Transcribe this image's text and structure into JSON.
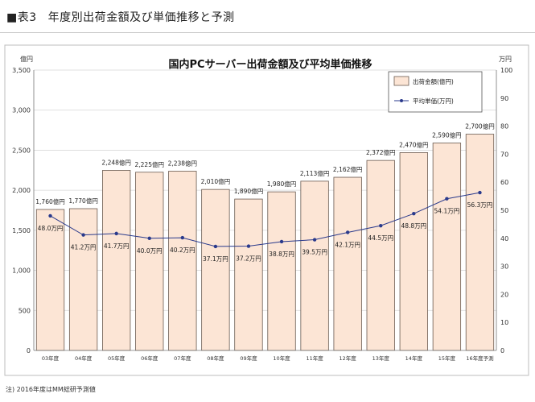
{
  "heading": {
    "marker": "■",
    "number": "表3",
    "title": "年度別出荷金額及び単価推移と予測"
  },
  "note": "注) 2016年度はMM総研予測値",
  "colors": {
    "bar_fill": "#fce5d5",
    "bar_stroke": "#6a5a50",
    "line": "#2a3a8c",
    "grid": "#d8d8d8",
    "axis": "#777777"
  },
  "chart_data": {
    "type": "bar",
    "title": "国内PCサーバー出荷金額及び平均単価推移",
    "categories": [
      "03年度",
      "04年度",
      "05年度",
      "06年度",
      "07年度",
      "08年度",
      "09年度",
      "10年度",
      "11年度",
      "12年度",
      "13年度",
      "14年度",
      "15年度",
      "16年度予測"
    ],
    "series": [
      {
        "name": "出荷金額(億円)",
        "kind": "bar",
        "axis": "left",
        "values": [
          1760,
          1770,
          2248,
          2225,
          2238,
          2010,
          1890,
          1980,
          2113,
          2162,
          2372,
          2470,
          2590,
          2700
        ],
        "labels": [
          "1,760億円",
          "1,770億円",
          "2,248億円",
          "2,225億円",
          "2,238億円",
          "2,010億円",
          "1,890億円",
          "1,980億円",
          "2,113億円",
          "2,162億円",
          "2,372億円",
          "2,470億円",
          "2,590億円",
          "2,700億円"
        ]
      },
      {
        "name": "平均単価(万円)",
        "kind": "line",
        "axis": "right",
        "values": [
          48.0,
          41.2,
          41.7,
          40.0,
          40.2,
          37.1,
          37.2,
          38.8,
          39.5,
          42.1,
          44.5,
          48.8,
          54.1,
          56.3
        ],
        "labels": [
          "48.0万円",
          "41.2万円",
          "41.7万円",
          "40.0万円",
          "40.2万円",
          "37.1万円",
          "37.2万円",
          "38.8万円",
          "39.5万円",
          "42.1万円",
          "44.5万円",
          "48.8万円",
          "54.1万円",
          "56.3万円"
        ]
      }
    ],
    "y_left": {
      "unit": "億円",
      "range": [
        0,
        3500
      ],
      "ticks": [
        0,
        500,
        1000,
        1500,
        2000,
        2500,
        3000,
        3500
      ],
      "tick_labels": [
        "0",
        "500",
        "1,000",
        "1,500",
        "2,000",
        "2,500",
        "3,000",
        "3,500"
      ]
    },
    "y_right": {
      "unit": "万円",
      "range": [
        0,
        100
      ],
      "ticks": [
        0,
        10,
        20,
        30,
        40,
        50,
        60,
        70,
        80,
        90,
        100
      ],
      "tick_labels": [
        "0",
        "10",
        "20",
        "30",
        "40",
        "50",
        "60",
        "70",
        "80",
        "90",
        "100"
      ]
    },
    "grid": true,
    "legend_position": "top-right"
  }
}
